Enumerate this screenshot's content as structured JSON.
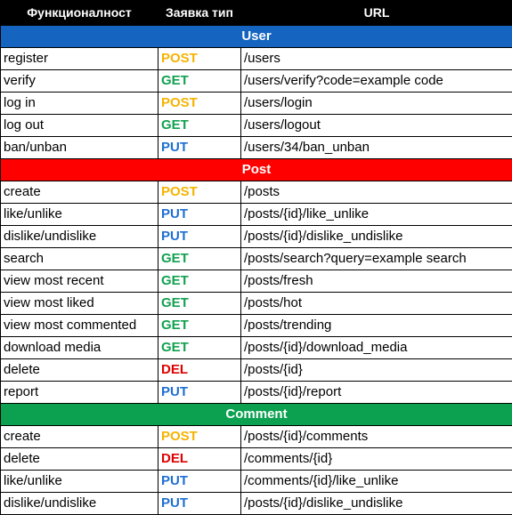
{
  "header": {
    "functionality": "Функционалност",
    "request_type": "Заявка тип",
    "url": "URL"
  },
  "colors": {
    "POST": "#f5b301",
    "GET": "#12a150",
    "PUT": "#1f6fd1",
    "DEL": "#e00000"
  },
  "sections": [
    {
      "title": "User",
      "color": "#1565c0",
      "rows": [
        {
          "name": "register",
          "method": "POST",
          "url": "/users"
        },
        {
          "name": "verify",
          "method": "GET",
          "url": "/users/verify?code=example code"
        },
        {
          "name": "log in",
          "method": "POST",
          "url": "/users/login"
        },
        {
          "name": "log out",
          "method": "GET",
          "url": "/users/logout"
        },
        {
          "name": "ban/unban",
          "method": "PUT",
          "url": "/users/34/ban_unban"
        }
      ]
    },
    {
      "title": "Post",
      "color": "#ff0000",
      "rows": [
        {
          "name": "create",
          "method": "POST",
          "url": "/posts"
        },
        {
          "name": "like/unlike",
          "method": "PUT",
          "url": "/posts/{id}/like_unlike"
        },
        {
          "name": "dislike/undislike",
          "method": "PUT",
          "url": "/posts/{id}/dislike_undislike"
        },
        {
          "name": "search",
          "method": "GET",
          "url": "/posts/search?query=example search"
        },
        {
          "name": "view most recent",
          "method": "GET",
          "url": "/posts/fresh"
        },
        {
          "name": "view most liked",
          "method": "GET",
          "url": "/posts/hot"
        },
        {
          "name": "view most commented",
          "method": "GET",
          "url": "/posts/trending"
        },
        {
          "name": "download media",
          "method": "GET",
          "url": "/posts/{id}/download_media"
        },
        {
          "name": "delete",
          "method": "DEL",
          "url": "/posts/{id}"
        },
        {
          "name": "report",
          "method": "PUT",
          "url": "/posts/{id}/report"
        }
      ]
    },
    {
      "title": "Comment",
      "color": "#0ca150",
      "rows": [
        {
          "name": "create",
          "method": "POST",
          "url": "/posts/{id}/comments"
        },
        {
          "name": "delete",
          "method": "DEL",
          "url": "/comments/{id}"
        },
        {
          "name": "like/unlike",
          "method": "PUT",
          "url": "/comments/{id}/like_unlike"
        },
        {
          "name": "dislike/undislike",
          "method": "PUT",
          "url": "/posts/{id}/dislike_undislike"
        }
      ]
    }
  ]
}
